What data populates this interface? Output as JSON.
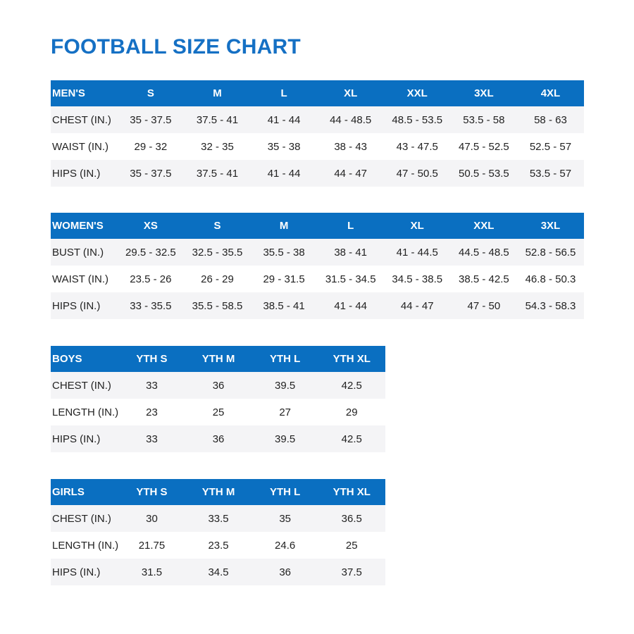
{
  "title": "FOOTBALL SIZE CHART",
  "tables": [
    {
      "headers": [
        "MEN'S",
        "S",
        "M",
        "L",
        "XL",
        "XXL",
        "3XL",
        "4XL"
      ],
      "rows": [
        [
          "CHEST (IN.)",
          "35 - 37.5",
          "37.5 - 41",
          "41 - 44",
          "44 - 48.5",
          "48.5 - 53.5",
          "53.5 - 58",
          "58 - 63"
        ],
        [
          "WAIST (IN.)",
          "29 - 32",
          "32 - 35",
          "35 - 38",
          "38 - 43",
          "43 - 47.5",
          "47.5 - 52.5",
          "52.5 - 57"
        ],
        [
          "HIPS (IN.)",
          "35 - 37.5",
          "37.5 - 41",
          "41 - 44",
          "44 - 47",
          "47 - 50.5",
          "50.5 - 53.5",
          "53.5 - 57"
        ]
      ]
    },
    {
      "headers": [
        "WOMEN'S",
        "XS",
        "S",
        "M",
        "L",
        "XL",
        "XXL",
        "3XL"
      ],
      "rows": [
        [
          "BUST (IN.)",
          "29.5 - 32.5",
          "32.5 - 35.5",
          "35.5 - 38",
          "38 - 41",
          "41 - 44.5",
          "44.5 - 48.5",
          "52.8 - 56.5"
        ],
        [
          "WAIST (IN.)",
          "23.5 - 26",
          "26 - 29",
          "29 - 31.5",
          "31.5 - 34.5",
          "34.5 - 38.5",
          "38.5 - 42.5",
          "46.8 - 50.3"
        ],
        [
          "HIPS (IN.)",
          "33 - 35.5",
          "35.5 - 58.5",
          "38.5 - 41",
          "41 - 44",
          "44 - 47",
          "47 - 50",
          "54.3 - 58.3"
        ]
      ]
    },
    {
      "headers": [
        "BOYS",
        "YTH S",
        "YTH M",
        "YTH L",
        "YTH XL"
      ],
      "rows": [
        [
          "CHEST (IN.)",
          "33",
          "36",
          "39.5",
          "42.5"
        ],
        [
          "LENGTH (IN.)",
          "23",
          "25",
          "27",
          "29"
        ],
        [
          "HIPS (IN.)",
          "33",
          "36",
          "39.5",
          "42.5"
        ]
      ]
    },
    {
      "headers": [
        "GIRLS",
        "YTH S",
        "YTH M",
        "YTH L",
        "YTH XL"
      ],
      "rows": [
        [
          "CHEST (IN.)",
          "30",
          "33.5",
          "35",
          "36.5"
        ],
        [
          "LENGTH (IN.)",
          "21.75",
          "23.5",
          "24.6",
          "25"
        ],
        [
          "HIPS (IN.)",
          "31.5",
          "34.5",
          "36",
          "37.5"
        ]
      ]
    }
  ],
  "colors": {
    "header": "#0a6fc1",
    "title": "#1570c4",
    "shade": "#f4f4f6"
  }
}
